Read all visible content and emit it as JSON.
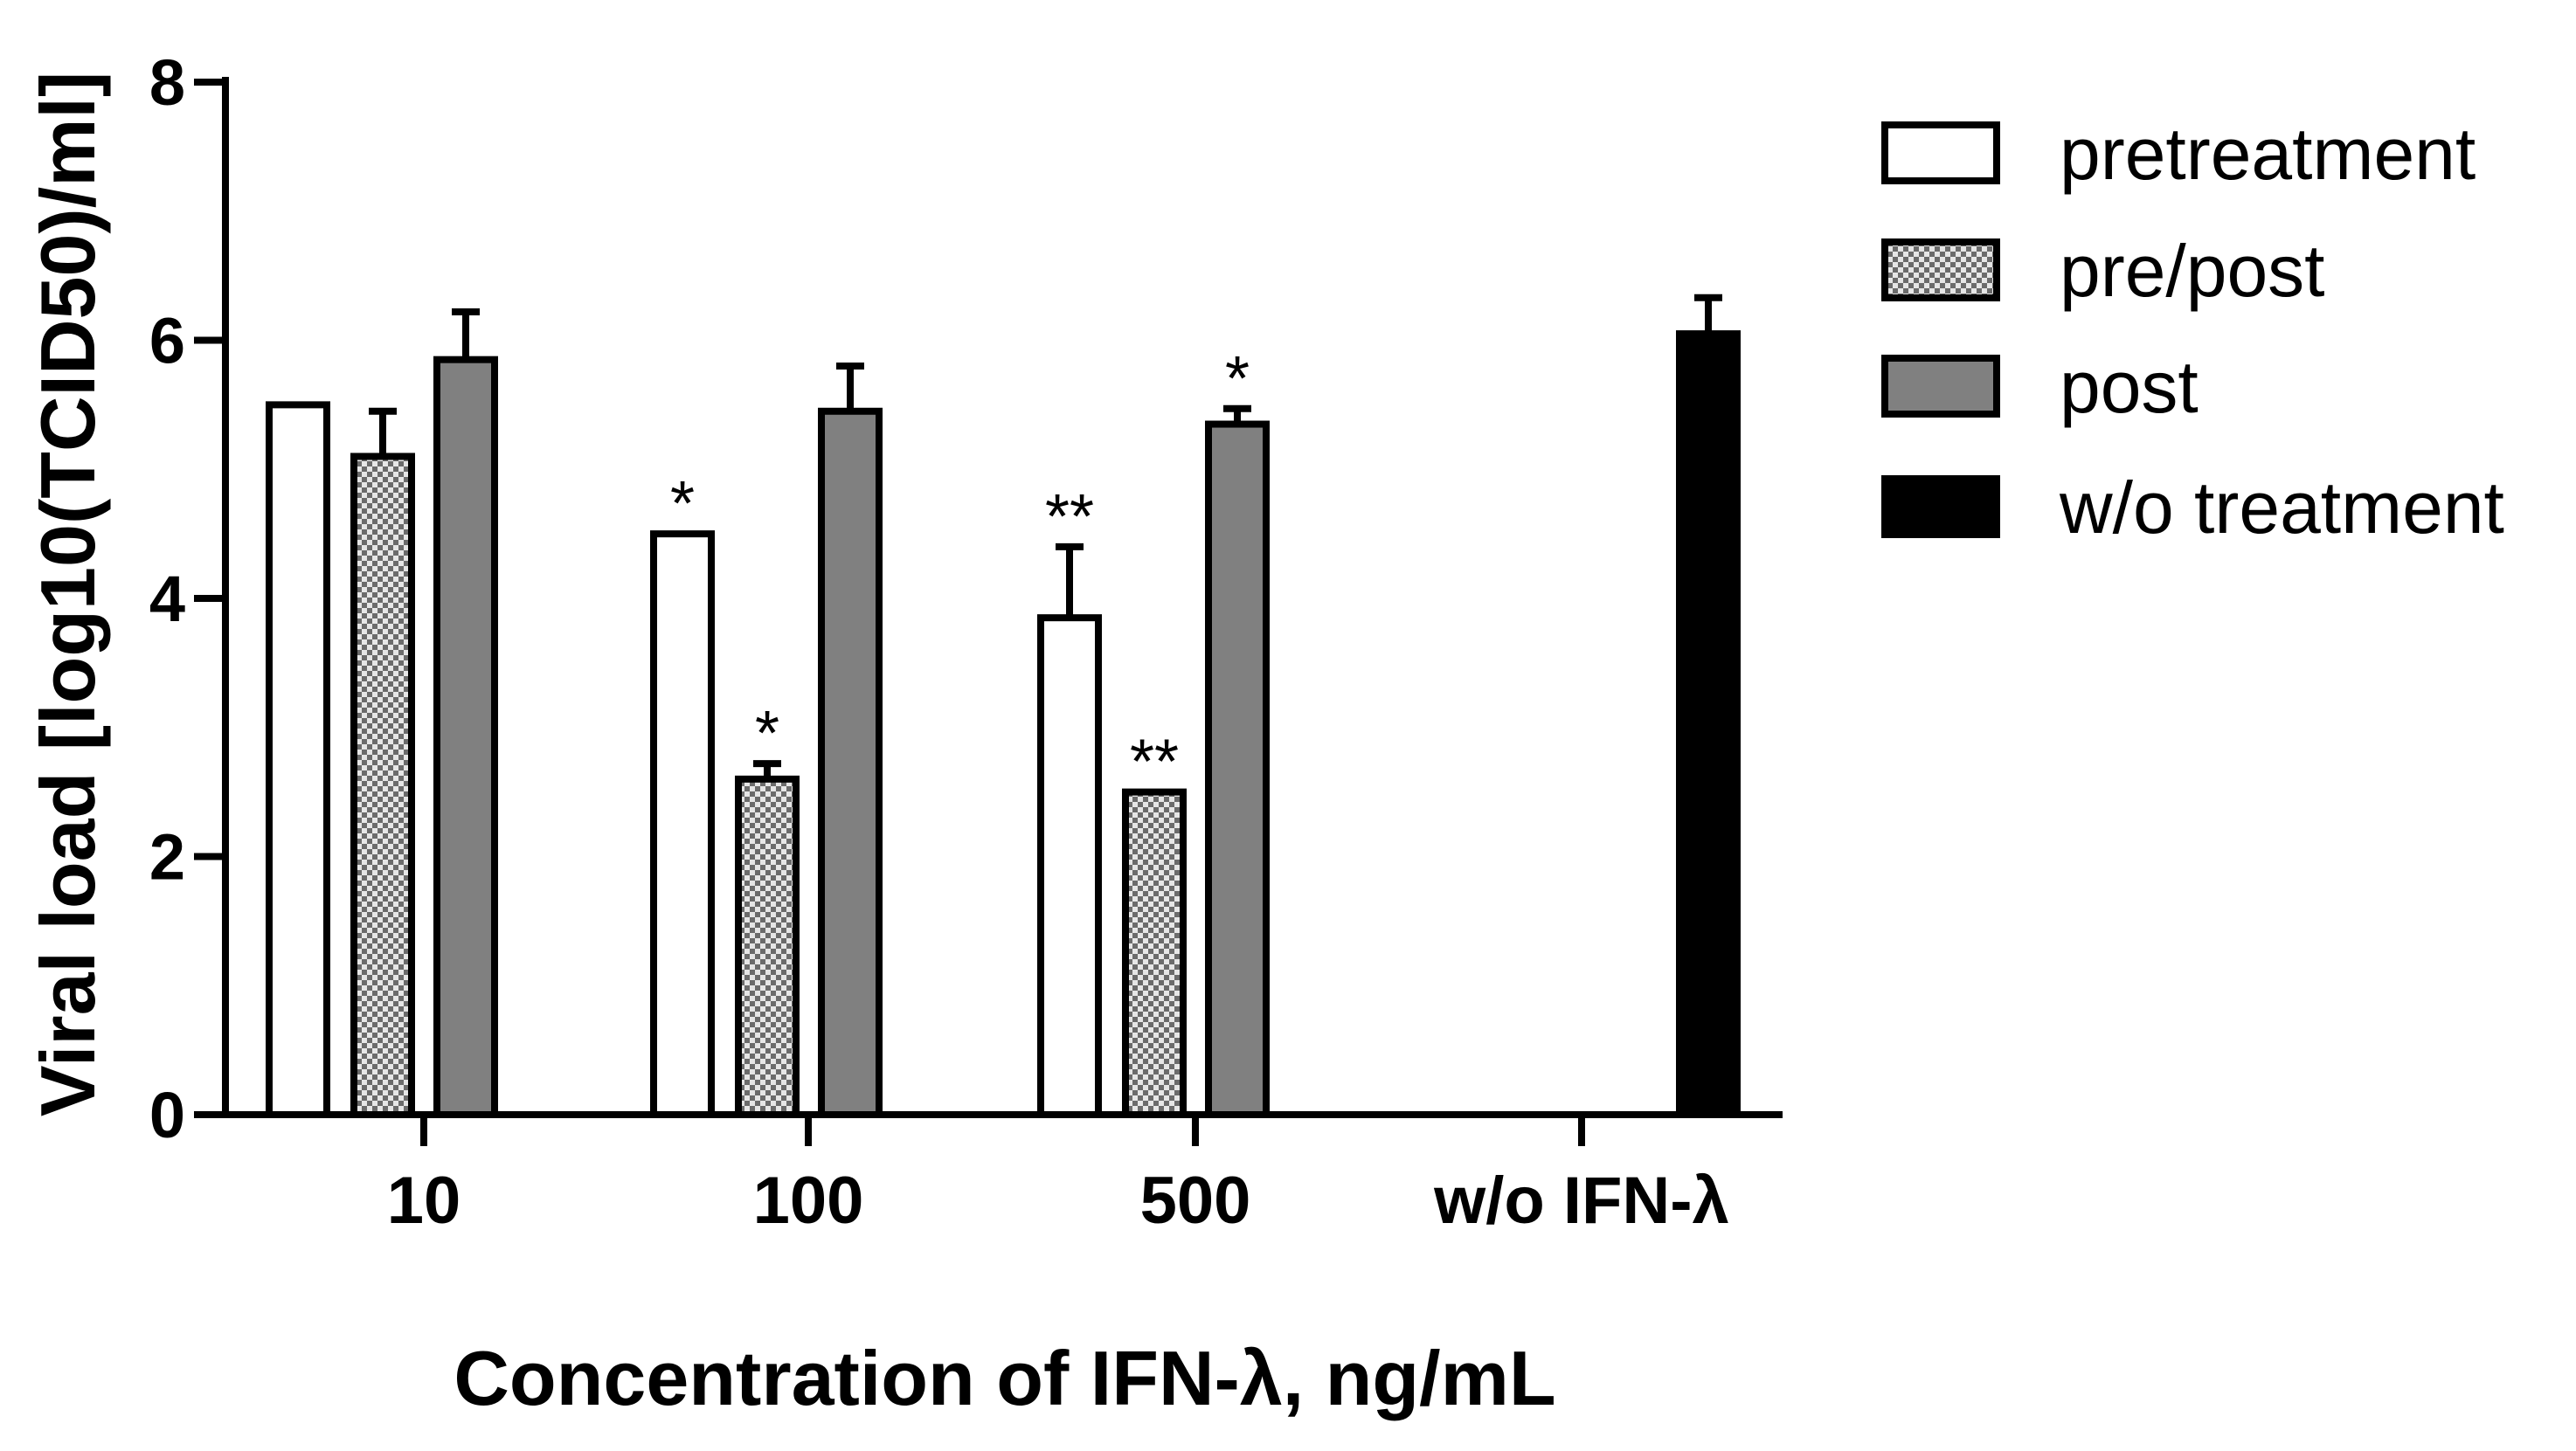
{
  "chart_data": {
    "type": "bar",
    "title": "",
    "xlabel": "Concentration of IFN-λ, ng/mL",
    "ylabel": "Viral load [log10(TCID50)/ml]",
    "ylim": [
      0,
      8
    ],
    "yticks": [
      "0",
      "2",
      "4",
      "6",
      "8"
    ],
    "grid": false,
    "legend_position": "right",
    "categories": [
      "10",
      "100",
      "500",
      "w/o IFN-λ"
    ],
    "series": [
      {
        "name": "pretreatment",
        "fill": "white",
        "values": [
          5.5,
          4.5,
          3.85,
          null
        ],
        "errors": [
          0,
          0,
          0.55,
          null
        ],
        "significance": [
          "",
          "*",
          "**",
          ""
        ]
      },
      {
        "name": "pre/post",
        "fill": "checkered",
        "values": [
          5.1,
          2.6,
          2.5,
          null
        ],
        "errors": [
          0.35,
          0.12,
          0,
          null
        ],
        "significance": [
          "",
          "*",
          "**",
          ""
        ]
      },
      {
        "name": "post",
        "fill": "gray",
        "values": [
          5.85,
          5.45,
          5.35,
          null
        ],
        "errors": [
          0.37,
          0.35,
          0.12,
          null
        ],
        "significance": [
          "",
          "",
          "*",
          ""
        ]
      },
      {
        "name": "w/o treatment",
        "fill": "black",
        "values": [
          null,
          null,
          null,
          6.05
        ],
        "errors": [
          null,
          null,
          null,
          0.28
        ],
        "significance": [
          "",
          "",
          "",
          ""
        ]
      }
    ]
  },
  "colors": {
    "white_fill": "#ffffff",
    "gray_fill": "#808080",
    "black_fill": "#000000",
    "check_dark": "#6b6b6b",
    "check_light": "#e6e6e6"
  }
}
